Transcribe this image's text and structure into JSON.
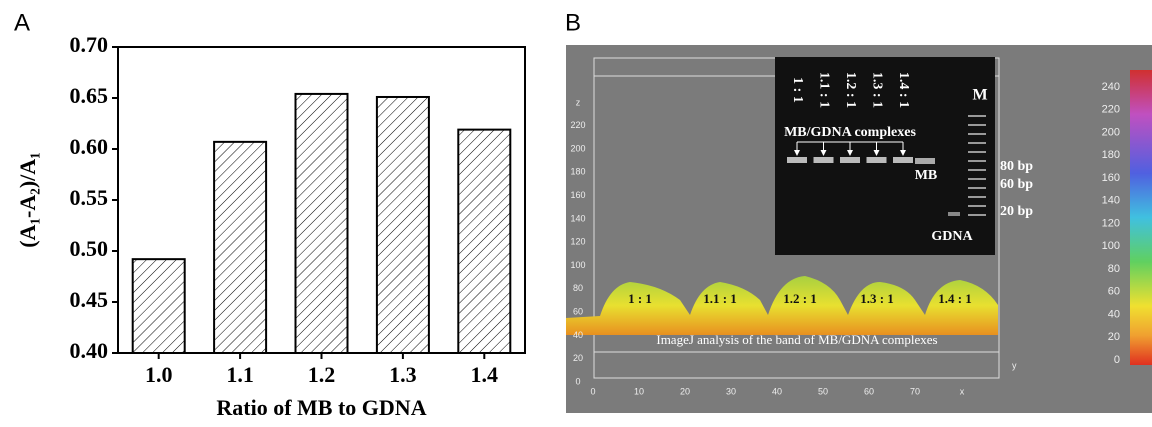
{
  "chart_data": {
    "type": "bar",
    "panel": "A",
    "x_label": "Ratio of MB to GDNA",
    "y_label": "(A₁-A₂)/A₁",
    "categories": [
      "1.0",
      "1.1",
      "1.2",
      "1.3",
      "1.4"
    ],
    "values": [
      0.492,
      0.607,
      0.654,
      0.651,
      0.619
    ],
    "ylim": [
      0.4,
      0.7
    ],
    "yticks": [
      {
        "value": 0.4,
        "label": "0.40"
      },
      {
        "value": 0.45,
        "label": "0.45"
      },
      {
        "value": 0.5,
        "label": "0.50"
      },
      {
        "value": 0.55,
        "label": "0.55"
      },
      {
        "value": 0.6,
        "label": "0.60"
      },
      {
        "value": 0.65,
        "label": "0.65"
      },
      {
        "value": 0.7,
        "label": "0.70"
      }
    ],
    "hatch": true,
    "grid": false
  },
  "panel_b": {
    "panel": "B",
    "z_axis": {
      "label": "z",
      "ticks": [
        0,
        20,
        40,
        60,
        80,
        100,
        120,
        140,
        160,
        180,
        200,
        220
      ]
    },
    "x_axis": {
      "label": "x",
      "ticks": [
        0,
        10,
        20,
        30,
        40,
        50,
        60,
        70
      ]
    },
    "y_axis_label": "y",
    "colorbar": {
      "ticks": [
        0,
        20,
        40,
        60,
        80,
        100,
        120,
        140,
        160,
        180,
        200,
        220,
        240
      ]
    },
    "gel": {
      "lanes": [
        "1 : 1",
        "1.1 : 1",
        "1.2 : 1",
        "1.3 : 1",
        "1.4 : 1"
      ],
      "marker": "M",
      "complex_label": "MB/GDNA complexes",
      "mb": "MB",
      "gdna": "GDNA",
      "sizes": [
        "80 bp",
        "60 bp",
        "20 bp"
      ]
    },
    "peaks": [
      "1 : 1",
      "1.1 : 1",
      "1.2 : 1",
      "1.3 : 1",
      "1.4 : 1"
    ],
    "caption": "ImageJ analysis of the band of MB/GDNA complexes"
  }
}
